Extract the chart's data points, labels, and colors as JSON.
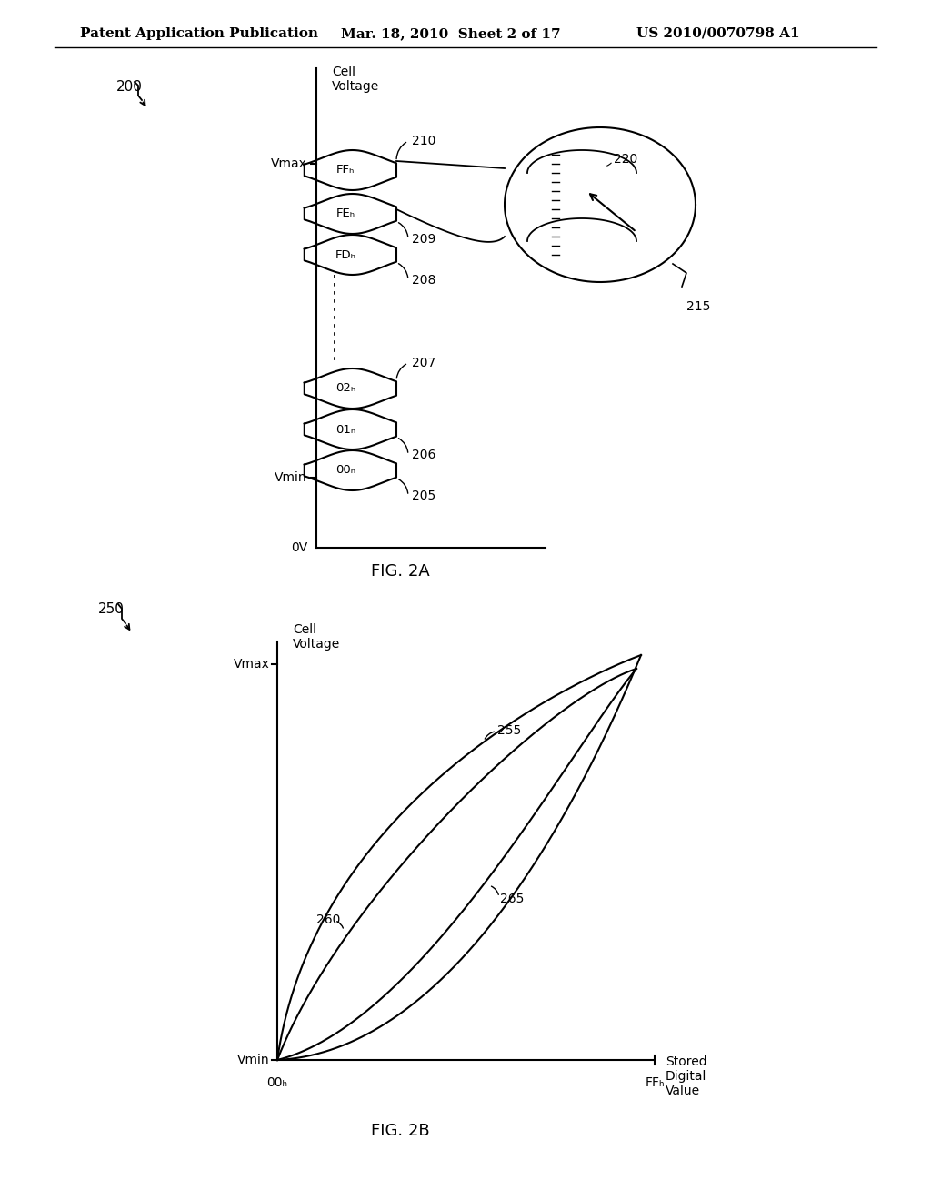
{
  "bg_color": "#ffffff",
  "header_left": "Patent Application Publication",
  "header_mid": "Mar. 18, 2010  Sheet 2 of 17",
  "header_right": "US 2010/0070798 A1",
  "fig2a_label": "FIG. 2A",
  "fig2b_label": "FIG. 2B",
  "fig2a_ref": "200",
  "fig2b_ref": "250",
  "cell_voltage_label": "Cell\nVoltage",
  "stored_digital_value_label": "Stored\nDigital\nValue",
  "vmax_label": "Vmax",
  "vmin_label": "Vmin",
  "ov_label": "0V",
  "00h_label": "00ₕ",
  "ffh_label": "FFₕ",
  "ref_210": "210",
  "ref_209": "209",
  "ref_208": "208",
  "ref_207": "207",
  "ref_206": "206",
  "ref_205": "205",
  "ref_220": "220",
  "ref_215": "215",
  "ref_260": "260",
  "ref_265": "265",
  "ref_255": "255"
}
